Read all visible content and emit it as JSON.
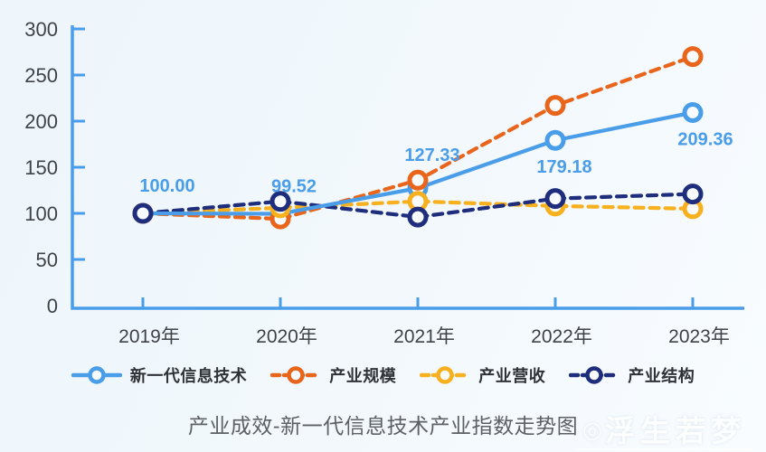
{
  "chart_data": {
    "type": "line",
    "title": "产业成效-新一代信息技术产业指数走势图",
    "xlabel": "",
    "ylabel": "",
    "categories": [
      "2019年",
      "2020年",
      "2021年",
      "2022年",
      "2023年"
    ],
    "series": [
      {
        "name": "新一代信息技术",
        "color": "#4a9de8",
        "style": "solid",
        "values": [
          100.0,
          99.52,
          127.33,
          179.18,
          209.36
        ],
        "point_labels": [
          "100.00",
          "99.52",
          "127.33",
          "179.18",
          "209.36"
        ]
      },
      {
        "name": "产业规模",
        "color": "#e8651b",
        "style": "dashed",
        "values": [
          100,
          94,
          136,
          217,
          270
        ]
      },
      {
        "name": "产业营收",
        "color": "#f7b01e",
        "style": "dashed",
        "values": [
          100,
          106,
          113,
          108,
          105
        ]
      },
      {
        "name": "产业结构",
        "color": "#1f2d7d",
        "style": "dashed",
        "values": [
          100,
          113,
          96,
          116,
          121
        ]
      }
    ],
    "ylim": [
      0,
      300
    ],
    "ytick_step": 50,
    "grid": false,
    "legend_position": "bottom",
    "axis_color": "#4a9de8",
    "tick_label_color": "#3f4347",
    "data_label_color": "#4a9de8"
  },
  "watermark": {
    "logo": "◎",
    "text": "浮生若梦"
  }
}
